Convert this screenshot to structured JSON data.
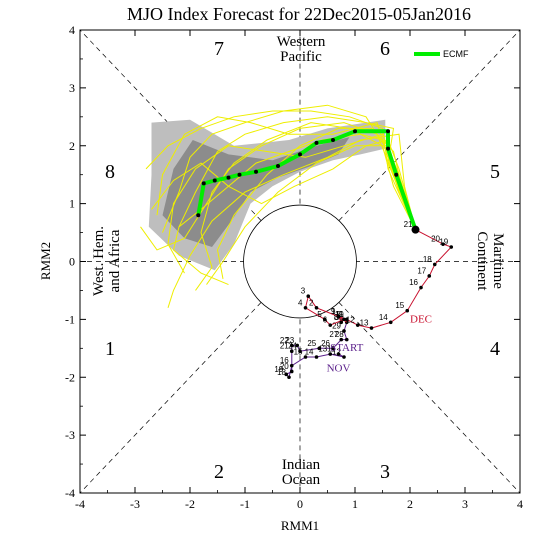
{
  "chart_data": {
    "type": "scatter",
    "title": "MJO Index Forecast for 22Dec2015-05Jan2016",
    "xlabel": "RMM1",
    "ylabel": "RMM2",
    "xlim": [
      -4,
      4
    ],
    "ylim": [
      -4,
      4
    ],
    "xticks": [
      "-4",
      "-3",
      "-2",
      "-1",
      "0",
      "1",
      "2",
      "3",
      "4"
    ],
    "yticks": [
      "-4",
      "-3",
      "-2",
      "-1",
      "0",
      "1",
      "2",
      "3",
      "4"
    ],
    "grid": "dashed phase lines",
    "legend": {
      "position": "top-right",
      "entries": [
        "ECMF"
      ]
    },
    "phases": [
      "1",
      "2",
      "3",
      "4",
      "5",
      "6",
      "7",
      "8"
    ],
    "regions": {
      "top": [
        "Western",
        "Pacific"
      ],
      "bottom": [
        "Indian",
        "Ocean"
      ],
      "left": [
        "West. Hem.",
        "and Africa"
      ],
      "right": [
        "Maritime",
        "Continent"
      ]
    },
    "month_labels": [
      {
        "text": "START",
        "x": 0.85,
        "y": -1.55,
        "color": "#5a1f8a"
      },
      {
        "text": "NOV",
        "x": 0.7,
        "y": -1.9,
        "color": "#5a1f8a"
      },
      {
        "text": "DEC",
        "x": 2.2,
        "y": -1.05,
        "color": "#c8102e"
      }
    ],
    "series": [
      {
        "name": "Nov",
        "color": "#5a1f8a",
        "points": [
          [
            0.7,
            -1.6,
            "11"
          ],
          [
            0.8,
            -1.65,
            "12"
          ],
          [
            0.55,
            -1.6,
            "13"
          ],
          [
            0.3,
            -1.65,
            "14"
          ],
          [
            0.1,
            -1.65,
            "15"
          ],
          [
            -0.15,
            -1.8,
            "16"
          ],
          [
            -0.2,
            -2.0,
            "18"
          ],
          [
            -0.25,
            -1.95,
            "19"
          ],
          [
            -0.15,
            -1.9,
            "20"
          ],
          [
            -0.15,
            -1.55,
            "21"
          ],
          [
            -0.15,
            -1.45,
            "22"
          ],
          [
            -0.05,
            -1.45,
            "23"
          ],
          [
            0.0,
            -1.55,
            "24"
          ],
          [
            0.35,
            -1.5,
            "25"
          ],
          [
            0.6,
            -1.5,
            "26"
          ],
          [
            0.75,
            -1.35,
            "27"
          ],
          [
            0.85,
            -1.35,
            "28"
          ],
          [
            0.8,
            -1.2,
            "29"
          ],
          [
            0.85,
            -1.05,
            "30"
          ]
        ]
      },
      {
        "name": "Dec",
        "color": "#c8102e",
        "points": [
          [
            0.7,
            -0.95,
            "1"
          ],
          [
            0.3,
            -0.8,
            "2"
          ],
          [
            0.15,
            -0.6,
            "3"
          ],
          [
            0.1,
            -0.8,
            "4"
          ],
          [
            0.45,
            -1.0,
            "5"
          ],
          [
            0.55,
            -1.1,
            "6"
          ],
          [
            0.8,
            -1.0,
            "7"
          ],
          [
            0.75,
            -1.05,
            "8"
          ],
          [
            0.7,
            -0.95,
            "9"
          ],
          [
            0.85,
            -1.0,
            "10"
          ],
          [
            0.85,
            -1.0,
            "11"
          ],
          [
            1.05,
            -1.1,
            "12"
          ],
          [
            1.3,
            -1.15,
            "13"
          ],
          [
            1.65,
            -1.05,
            "14"
          ],
          [
            1.95,
            -0.85,
            "15"
          ],
          [
            2.2,
            -0.45,
            "16"
          ],
          [
            2.35,
            -0.25,
            "17"
          ],
          [
            2.45,
            -0.05,
            "18"
          ],
          [
            2.75,
            0.25,
            "19"
          ],
          [
            2.6,
            0.3,
            "20"
          ],
          [
            2.1,
            0.55,
            "21"
          ]
        ]
      },
      {
        "name": "ECMF",
        "color": "#00ee00",
        "points": [
          [
            2.1,
            0.55
          ],
          [
            1.75,
            1.5
          ],
          [
            1.6,
            1.95
          ],
          [
            1.6,
            2.25
          ],
          [
            1.0,
            2.25
          ],
          [
            0.6,
            2.1
          ],
          [
            0.3,
            2.05
          ],
          [
            0.0,
            1.85
          ],
          [
            -0.4,
            1.65
          ],
          [
            -0.8,
            1.55
          ],
          [
            -1.1,
            1.5
          ],
          [
            -1.3,
            1.45
          ],
          [
            -1.55,
            1.4
          ],
          [
            -1.75,
            1.35
          ],
          [
            -1.85,
            0.8
          ]
        ]
      }
    ],
    "ensemble": {
      "color": "#eeee00",
      "members": [
        [
          [
            2.1,
            0.55
          ],
          [
            1.8,
            1.2
          ],
          [
            1.5,
            2.1
          ],
          [
            1.1,
            2.2
          ],
          [
            0.4,
            2.1
          ],
          [
            -0.2,
            1.9
          ],
          [
            -0.8,
            1.7
          ],
          [
            -1.3,
            1.3
          ],
          [
            -1.8,
            0.9
          ],
          [
            -2.2,
            0.6
          ],
          [
            -2.3,
            0.2
          ],
          [
            -1.8,
            -0.2
          ],
          [
            -1.3,
            -0.4
          ]
        ],
        [
          [
            2.1,
            0.55
          ],
          [
            1.6,
            1.7
          ],
          [
            1.7,
            2.3
          ],
          [
            1.2,
            2.4
          ],
          [
            0.5,
            2.5
          ],
          [
            -0.3,
            2.4
          ],
          [
            -1.0,
            2.2
          ],
          [
            -1.5,
            1.9
          ],
          [
            -1.9,
            1.2
          ],
          [
            -2.2,
            0.6
          ]
        ],
        [
          [
            2.1,
            0.55
          ],
          [
            1.9,
            1.3
          ],
          [
            1.8,
            2.2
          ],
          [
            1.1,
            2.1
          ],
          [
            0.5,
            1.8
          ],
          [
            -0.3,
            1.5
          ],
          [
            -1.0,
            1.2
          ],
          [
            -1.6,
            0.7
          ],
          [
            -2.0,
            0.1
          ],
          [
            -2.3,
            -0.5
          ],
          [
            -2.4,
            -0.8
          ]
        ],
        [
          [
            2.1,
            0.55
          ],
          [
            1.6,
            1.6
          ],
          [
            1.5,
            2.3
          ],
          [
            0.9,
            2.5
          ],
          [
            0.2,
            2.6
          ],
          [
            -0.5,
            2.6
          ],
          [
            -1.2,
            2.5
          ],
          [
            -1.8,
            2.3
          ],
          [
            -2.4,
            2.0
          ],
          [
            -2.8,
            1.6
          ]
        ],
        [
          [
            2.1,
            0.55
          ],
          [
            1.8,
            1.4
          ],
          [
            1.6,
            2.0
          ],
          [
            1.0,
            2.0
          ],
          [
            0.3,
            1.7
          ],
          [
            -0.4,
            1.2
          ],
          [
            -1.0,
            0.6
          ],
          [
            -1.4,
            0.0
          ],
          [
            -1.7,
            -0.4
          ]
        ],
        [
          [
            2.1,
            0.55
          ],
          [
            1.7,
            1.5
          ],
          [
            1.4,
            2.2
          ],
          [
            0.8,
            2.4
          ],
          [
            0.0,
            2.3
          ],
          [
            -0.7,
            2.0
          ],
          [
            -1.3,
            1.6
          ],
          [
            -1.7,
            1.0
          ],
          [
            -2.1,
            0.4
          ],
          [
            -2.6,
            0.2
          ],
          [
            -2.9,
            0.6
          ]
        ],
        [
          [
            2.1,
            0.55
          ],
          [
            1.9,
            1.1
          ],
          [
            1.7,
            1.9
          ],
          [
            1.3,
            2.3
          ],
          [
            0.7,
            2.3
          ],
          [
            0.0,
            2.0
          ],
          [
            -0.6,
            1.5
          ],
          [
            -1.2,
            0.8
          ],
          [
            -1.5,
            0.2
          ],
          [
            -1.4,
            -0.3
          ]
        ],
        [
          [
            2.1,
            0.55
          ],
          [
            1.6,
            1.8
          ],
          [
            1.4,
            2.4
          ],
          [
            0.6,
            2.2
          ],
          [
            -0.2,
            2.2
          ],
          [
            -0.9,
            2.4
          ],
          [
            -1.5,
            2.5
          ],
          [
            -2.1,
            2.2
          ],
          [
            -2.5,
            1.5
          ],
          [
            -2.6,
            0.8
          ]
        ],
        [
          [
            2.1,
            0.55
          ],
          [
            1.8,
            1.6
          ],
          [
            1.6,
            2.1
          ],
          [
            1.2,
            2.0
          ],
          [
            0.6,
            1.6
          ],
          [
            -0.1,
            1.3
          ],
          [
            -0.7,
            1.0
          ],
          [
            -1.3,
            1.3
          ],
          [
            -1.8,
            1.7
          ],
          [
            -2.3,
            1.4
          ],
          [
            -2.7,
            0.9
          ]
        ],
        [
          [
            2.1,
            0.55
          ],
          [
            1.7,
            1.3
          ],
          [
            1.5,
            2.0
          ],
          [
            0.9,
            2.3
          ],
          [
            0.2,
            2.4
          ],
          [
            -0.6,
            2.1
          ],
          [
            -1.2,
            1.7
          ],
          [
            -1.6,
            1.2
          ],
          [
            -1.8,
            0.5
          ],
          [
            -1.6,
            -0.1
          ],
          [
            -1.9,
            -0.5
          ]
        ],
        [
          [
            2.1,
            0.55
          ],
          [
            1.6,
            1.9
          ],
          [
            1.2,
            2.5
          ],
          [
            0.5,
            2.7
          ],
          [
            -0.3,
            2.6
          ],
          [
            -1.0,
            2.4
          ],
          [
            -1.6,
            2.2
          ],
          [
            -2.0,
            1.8
          ],
          [
            -2.2,
            1.2
          ],
          [
            -2.5,
            0.5
          ]
        ],
        [
          [
            2.1,
            0.55
          ],
          [
            1.8,
            1.5
          ],
          [
            1.5,
            2.2
          ],
          [
            0.8,
            2.0
          ],
          [
            0.1,
            1.8
          ],
          [
            -0.6,
            1.9
          ],
          [
            -1.3,
            2.0
          ],
          [
            -1.9,
            1.6
          ],
          [
            -2.3,
            1.0
          ],
          [
            -2.4,
            0.3
          ],
          [
            -2.1,
            -0.2
          ]
        ]
      ]
    },
    "uncertainty_shading": {
      "outer_color": "#bebebe",
      "inner_color": "#8c8c8c",
      "outer": [
        [
          1.55,
          2.15
        ],
        [
          1.55,
          2.45
        ],
        [
          0.5,
          2.3
        ],
        [
          -0.2,
          2.1
        ],
        [
          -1.2,
          2.0
        ],
        [
          -2.0,
          2.45
        ],
        [
          -2.7,
          2.4
        ],
        [
          -2.7,
          1.5
        ],
        [
          -2.75,
          0.6
        ],
        [
          -2.2,
          0.1
        ],
        [
          -1.55,
          -0.15
        ],
        [
          -1.2,
          0.3
        ],
        [
          -0.9,
          1.0
        ],
        [
          -0.5,
          1.3
        ],
        [
          0.0,
          1.55
        ],
        [
          0.6,
          1.75
        ],
        [
          1.1,
          1.85
        ],
        [
          1.55,
          1.95
        ]
      ],
      "inner": [
        [
          0.9,
          2.15
        ],
        [
          0.3,
          2.0
        ],
        [
          -0.5,
          1.75
        ],
        [
          -1.3,
          1.85
        ],
        [
          -1.95,
          2.1
        ],
        [
          -2.3,
          1.6
        ],
        [
          -2.5,
          0.8
        ],
        [
          -2.1,
          0.4
        ],
        [
          -1.6,
          0.25
        ],
        [
          -1.25,
          0.7
        ],
        [
          -0.9,
          1.2
        ],
        [
          -0.4,
          1.45
        ],
        [
          0.2,
          1.65
        ],
        [
          0.7,
          1.85
        ]
      ]
    }
  }
}
